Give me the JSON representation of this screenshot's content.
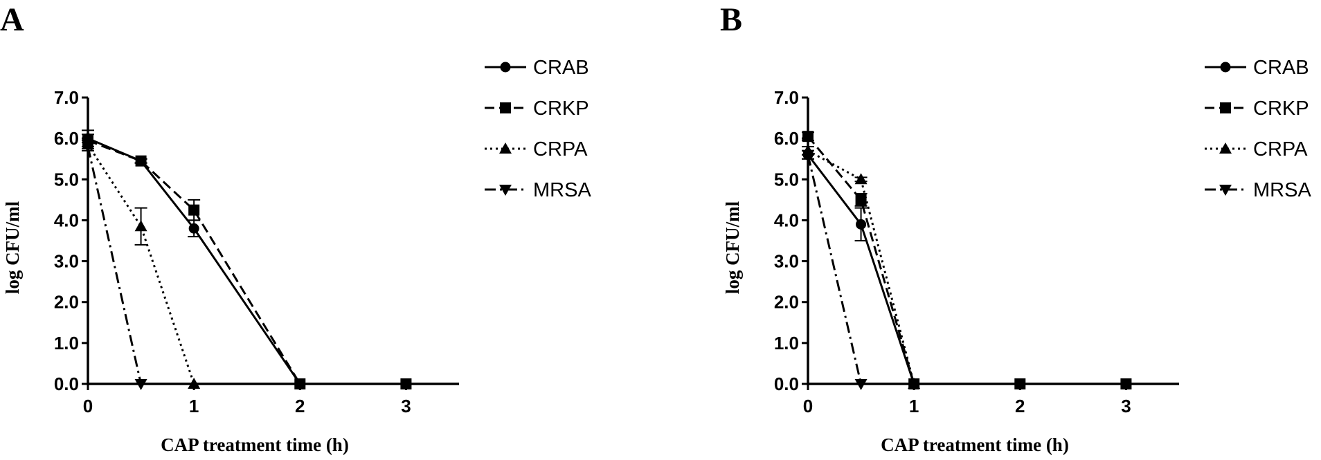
{
  "chart_data": [
    {
      "type": "line",
      "panel_label": "A",
      "xlabel": "CAP treatment time (h)",
      "ylabel": "log CFU/ml",
      "xlim": [
        0,
        3.5
      ],
      "ylim": [
        0,
        7.0
      ],
      "xticks": [
        "0",
        "1",
        "2",
        "3"
      ],
      "yticks": [
        "0.0",
        "1.0",
        "2.0",
        "3.0",
        "4.0",
        "5.0",
        "6.0",
        "7.0"
      ],
      "legend_position": "right",
      "series": [
        {
          "name": "CRAB",
          "marker": "circle",
          "line": "solid",
          "x": [
            0,
            0.5,
            1,
            2,
            3
          ],
          "y": [
            6.0,
            5.45,
            3.8,
            0,
            0
          ],
          "err": [
            0.2,
            0.05,
            0.2,
            0,
            0
          ]
        },
        {
          "name": "CRKP",
          "marker": "square",
          "line": "dashed",
          "x": [
            0,
            0.5,
            1,
            2,
            3
          ],
          "y": [
            5.95,
            5.45,
            4.25,
            0,
            0
          ],
          "err": [
            0.15,
            0.05,
            0.25,
            0,
            0
          ]
        },
        {
          "name": "CRPA",
          "marker": "triangle-up",
          "line": "dotted",
          "x": [
            0,
            0.5,
            1
          ],
          "y": [
            5.85,
            3.85,
            0
          ],
          "err": [
            0.1,
            0.45,
            0
          ]
        },
        {
          "name": "MRSA",
          "marker": "triangle-down",
          "line": "dashdot",
          "x": [
            0,
            0.5
          ],
          "y": [
            5.8,
            0
          ],
          "err": [
            0.1,
            0
          ]
        }
      ]
    },
    {
      "type": "line",
      "panel_label": "B",
      "xlabel": "CAP treatment time (h)",
      "ylabel": "log CFU/ml",
      "xlim": [
        0,
        3.5
      ],
      "ylim": [
        0,
        7.0
      ],
      "xticks": [
        "0",
        "1",
        "2",
        "3"
      ],
      "yticks": [
        "0.0",
        "1.0",
        "2.0",
        "3.0",
        "4.0",
        "5.0",
        "6.0",
        "7.0"
      ],
      "legend_position": "right",
      "series": [
        {
          "name": "CRAB",
          "marker": "circle",
          "line": "solid",
          "x": [
            0,
            0.5,
            1
          ],
          "y": [
            5.6,
            3.9,
            0
          ],
          "err": [
            0.1,
            0.4,
            0
          ]
        },
        {
          "name": "CRKP",
          "marker": "square",
          "line": "dashed",
          "x": [
            0,
            0.5,
            1,
            2,
            3
          ],
          "y": [
            6.05,
            4.5,
            0,
            0,
            0
          ],
          "err": [
            0.1,
            0.15,
            0,
            0,
            0
          ]
        },
        {
          "name": "CRPA",
          "marker": "triangle-up",
          "line": "dotted",
          "x": [
            0,
            0.5,
            1
          ],
          "y": [
            5.7,
            5.0,
            0
          ],
          "err": [
            0.1,
            0.05,
            0
          ]
        },
        {
          "name": "MRSA",
          "marker": "triangle-down",
          "line": "dashdot",
          "x": [
            0,
            0.5
          ],
          "y": [
            5.6,
            0
          ],
          "err": [
            0.1,
            0
          ]
        }
      ]
    }
  ]
}
